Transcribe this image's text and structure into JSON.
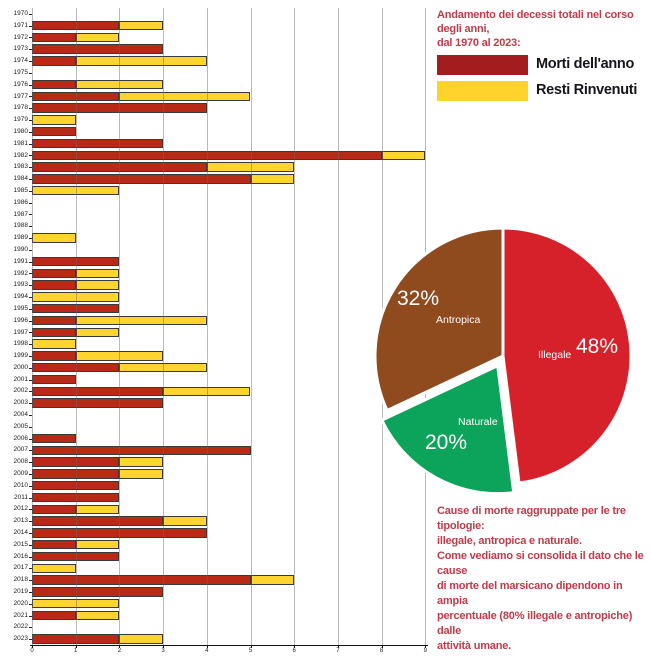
{
  "header": {
    "title_lines": [
      "Andamento dei decessi totali nel corso degli anni,",
      "dal 1970 al 2023:"
    ]
  },
  "legend": {
    "items": [
      {
        "label": "Morti dell'anno",
        "color": "#A31D1E"
      },
      {
        "label": "Resti Rinvenuti",
        "color": "#FFD329"
      }
    ]
  },
  "chart_data": [
    {
      "type": "bar",
      "orientation": "horizontal",
      "stacked": true,
      "title": "",
      "xlabel": "",
      "ylabel": "",
      "xlim": [
        0,
        9
      ],
      "xticks": [
        0,
        1,
        2,
        3,
        4,
        5,
        6,
        7,
        8,
        9
      ],
      "grid": true,
      "categories": [
        1970,
        1971,
        1972,
        1973,
        1974,
        1975,
        1976,
        1977,
        1978,
        1979,
        1980,
        1981,
        1982,
        1983,
        1984,
        1985,
        1986,
        1987,
        1988,
        1989,
        1990,
        1991,
        1992,
        1993,
        1994,
        1995,
        1996,
        1997,
        1998,
        1999,
        2000,
        2001,
        2002,
        2003,
        2004,
        2005,
        2006,
        2007,
        2008,
        2009,
        2010,
        2011,
        2012,
        2013,
        2014,
        2015,
        2016,
        2017,
        2018,
        2019,
        2020,
        2021,
        2022,
        2023
      ],
      "series": [
        {
          "name": "Morti dell'anno",
          "color": "#B92A16",
          "values": [
            0,
            2,
            1,
            3,
            1,
            0,
            1,
            2,
            4,
            0,
            1,
            3,
            8,
            4,
            5,
            0,
            0,
            0,
            0,
            0,
            0,
            2,
            1,
            1,
            0,
            2,
            1,
            1,
            0,
            1,
            2,
            1,
            3,
            3,
            0,
            0,
            1,
            5,
            2,
            2,
            2,
            2,
            1,
            3,
            4,
            1,
            2,
            0,
            5,
            3,
            0,
            1,
            0,
            2
          ]
        },
        {
          "name": "Resti Rinvenuti",
          "color": "#FFD42E",
          "values": [
            0,
            1,
            1,
            0,
            3,
            0,
            2,
            3,
            0,
            1,
            0,
            0,
            1,
            2,
            1,
            2,
            0,
            0,
            0,
            1,
            0,
            0,
            1,
            1,
            2,
            0,
            3,
            1,
            1,
            2,
            2,
            0,
            2,
            0,
            0,
            0,
            0,
            0,
            1,
            1,
            0,
            0,
            1,
            1,
            0,
            1,
            0,
            1,
            1,
            0,
            2,
            1,
            0,
            1
          ]
        }
      ]
    },
    {
      "type": "pie",
      "start_angle_deg": 0,
      "direction": "clockwise",
      "slices": [
        {
          "label": "Illegale",
          "value": 48,
          "pct_label": "48%",
          "color": "#D6212A",
          "exploded": false
        },
        {
          "label": "Naturale",
          "value": 20,
          "pct_label": "20%",
          "color": "#0BA45A",
          "exploded": true
        },
        {
          "label": "Antropica",
          "value": 32,
          "pct_label": "32%",
          "color": "#8F4A1E",
          "exploded": false
        }
      ]
    }
  ],
  "footer": {
    "lines": [
      "Cause di morte raggruppate per le tre tipologie:",
      "illegale, antropica e naturale.",
      "Come vediamo si consolida il dato che le cause",
      "di morte del marsicano dipendono in ampia",
      "percentuale (80% illegale e antropiche) dalle",
      "attività umane."
    ]
  }
}
